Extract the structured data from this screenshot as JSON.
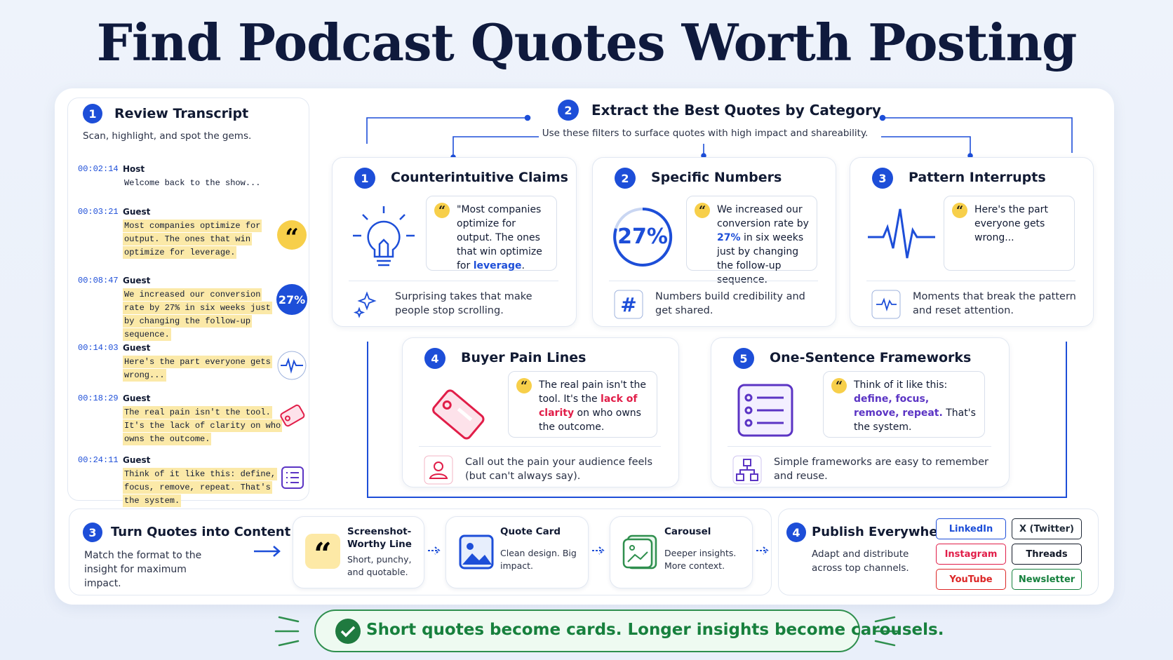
{
  "title": "Find Podcast Quotes Worth Posting",
  "transcript": {
    "step": 1,
    "title": "Review Transcript",
    "subtitle": "Scan, highlight, and spot the gems.",
    "entries": [
      {
        "time": "00:02:14",
        "speaker": "Host",
        "text": "Welcome back to the show..."
      },
      {
        "time": "00:03:21",
        "speaker": "Guest",
        "text": "Most companies optimize for output. The ones that win optimize for leverage.",
        "highlight": "#fbe9a8"
      },
      {
        "time": "00:08:47",
        "speaker": "Guest",
        "text": "We increased our conversion rate by 27% in six weeks just by changing the follow-up sequence.",
        "highlight": "#fbe9a8",
        "badge": "27%"
      },
      {
        "time": "00:14:03",
        "speaker": "Guest",
        "text": "Here's the part everyone gets wrong...",
        "highlight": "#fbe9a8"
      },
      {
        "time": "00:18:29",
        "speaker": "Guest",
        "text": "The real pain isn't the tool. It's the lack of clarity on who owns the outcome.",
        "highlight": "#fbe9a8"
      },
      {
        "time": "00:24:11",
        "speaker": "Guest",
        "text": "Think of it like this: define, focus, remove, repeat. That's the system.",
        "highlight": "#fbe9a8"
      }
    ]
  },
  "extract": {
    "step": 2,
    "title": "Extract the Best Quotes by Category",
    "subtitle": "Use these filters to surface quotes with high impact and shareability.",
    "categories": [
      {
        "number": 1,
        "title": "Counterintuitive Claims",
        "quote": [
          {
            "text": "\"Most companies optimize for output. The ones that win optimize for "
          },
          {
            "text": "leverage",
            "color": "#1d4ed8"
          },
          {
            "text": "."
          }
        ],
        "caption": "Surprising takes that make people stop scrolling."
      },
      {
        "number": 2,
        "title": "Specific Numbers",
        "stat": "27%",
        "quote": [
          {
            "text": "We increased our conversion rate by "
          },
          {
            "text": "27%",
            "color": "#1d4ed8"
          },
          {
            "text": " in six weeks just by changing the follow-up sequence."
          }
        ],
        "caption": "Numbers build credibility and get shared."
      },
      {
        "number": 3,
        "title": "Pattern Interrupts",
        "quote": [
          {
            "text": "Here's the part everyone gets wrong..."
          }
        ],
        "caption": "Moments that break the pattern and reset attention."
      },
      {
        "number": 4,
        "title": "Buyer Pain Lines",
        "quote": [
          {
            "text": "The real pain isn't the tool. It's the "
          },
          {
            "text": "lack of clarity",
            "color": "#e11d48"
          },
          {
            "text": " on who owns the outcome."
          }
        ],
        "caption": "Call out the pain your audience feels (but can't always say)."
      },
      {
        "number": 5,
        "title": "One-Sentence Frameworks",
        "quote": [
          {
            "text": "Think of it like this: "
          },
          {
            "text": "define, focus, remove, repeat.",
            "color": "#5b34c4"
          },
          {
            "text": " That's the system."
          }
        ],
        "caption": "Simple frameworks are easy to remember and reuse."
      }
    ]
  },
  "content": {
    "step": 3,
    "title": "Turn Quotes into Content",
    "subtitle": "Match the format to the insight for maximum impact.",
    "formats": [
      {
        "title": "Screenshot-Worthy Line",
        "description": "Short, punchy, and quotable."
      },
      {
        "title": "Quote Card",
        "description": "Clean design. Big impact."
      },
      {
        "title": "Carousel",
        "description": "Deeper insights. More context."
      }
    ]
  },
  "publish": {
    "step": 4,
    "title": "Publish Everywhere",
    "subtitle": "Adapt and distribute across top channels.",
    "channels": [
      {
        "name": "LinkedIn",
        "color": "#1d4ed8"
      },
      {
        "name": "X (Twitter)",
        "color": "#1f2937"
      },
      {
        "name": "Instagram",
        "color": "#e11d48"
      },
      {
        "name": "Threads",
        "color": "#111827"
      },
      {
        "name": "YouTube",
        "color": "#dc2626"
      },
      {
        "name": "Newsletter",
        "color": "#15803d"
      }
    ]
  },
  "footer": "Short quotes become cards. Longer insights become carousels."
}
